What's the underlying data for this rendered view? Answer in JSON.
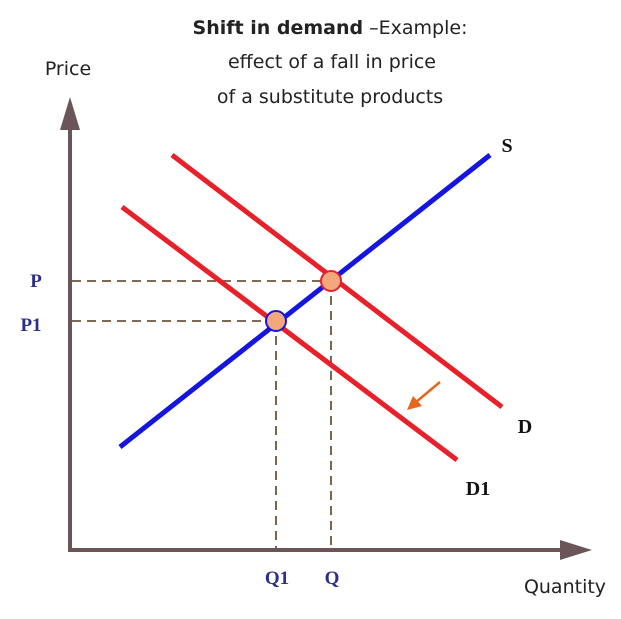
{
  "title": {
    "bold": "Shift in demand",
    "rest": "–Example:",
    "lines": [
      "effect of a fall in price",
      "of a substitute products"
    ]
  },
  "axes": {
    "y": "Price",
    "x": "Quantity"
  },
  "curves": {
    "supply": "S",
    "demand": "D",
    "new_demand": "D1"
  },
  "levels": {
    "price": "P",
    "new_price": "P1",
    "new_quantity": "Q1",
    "quantity": "Q"
  }
}
